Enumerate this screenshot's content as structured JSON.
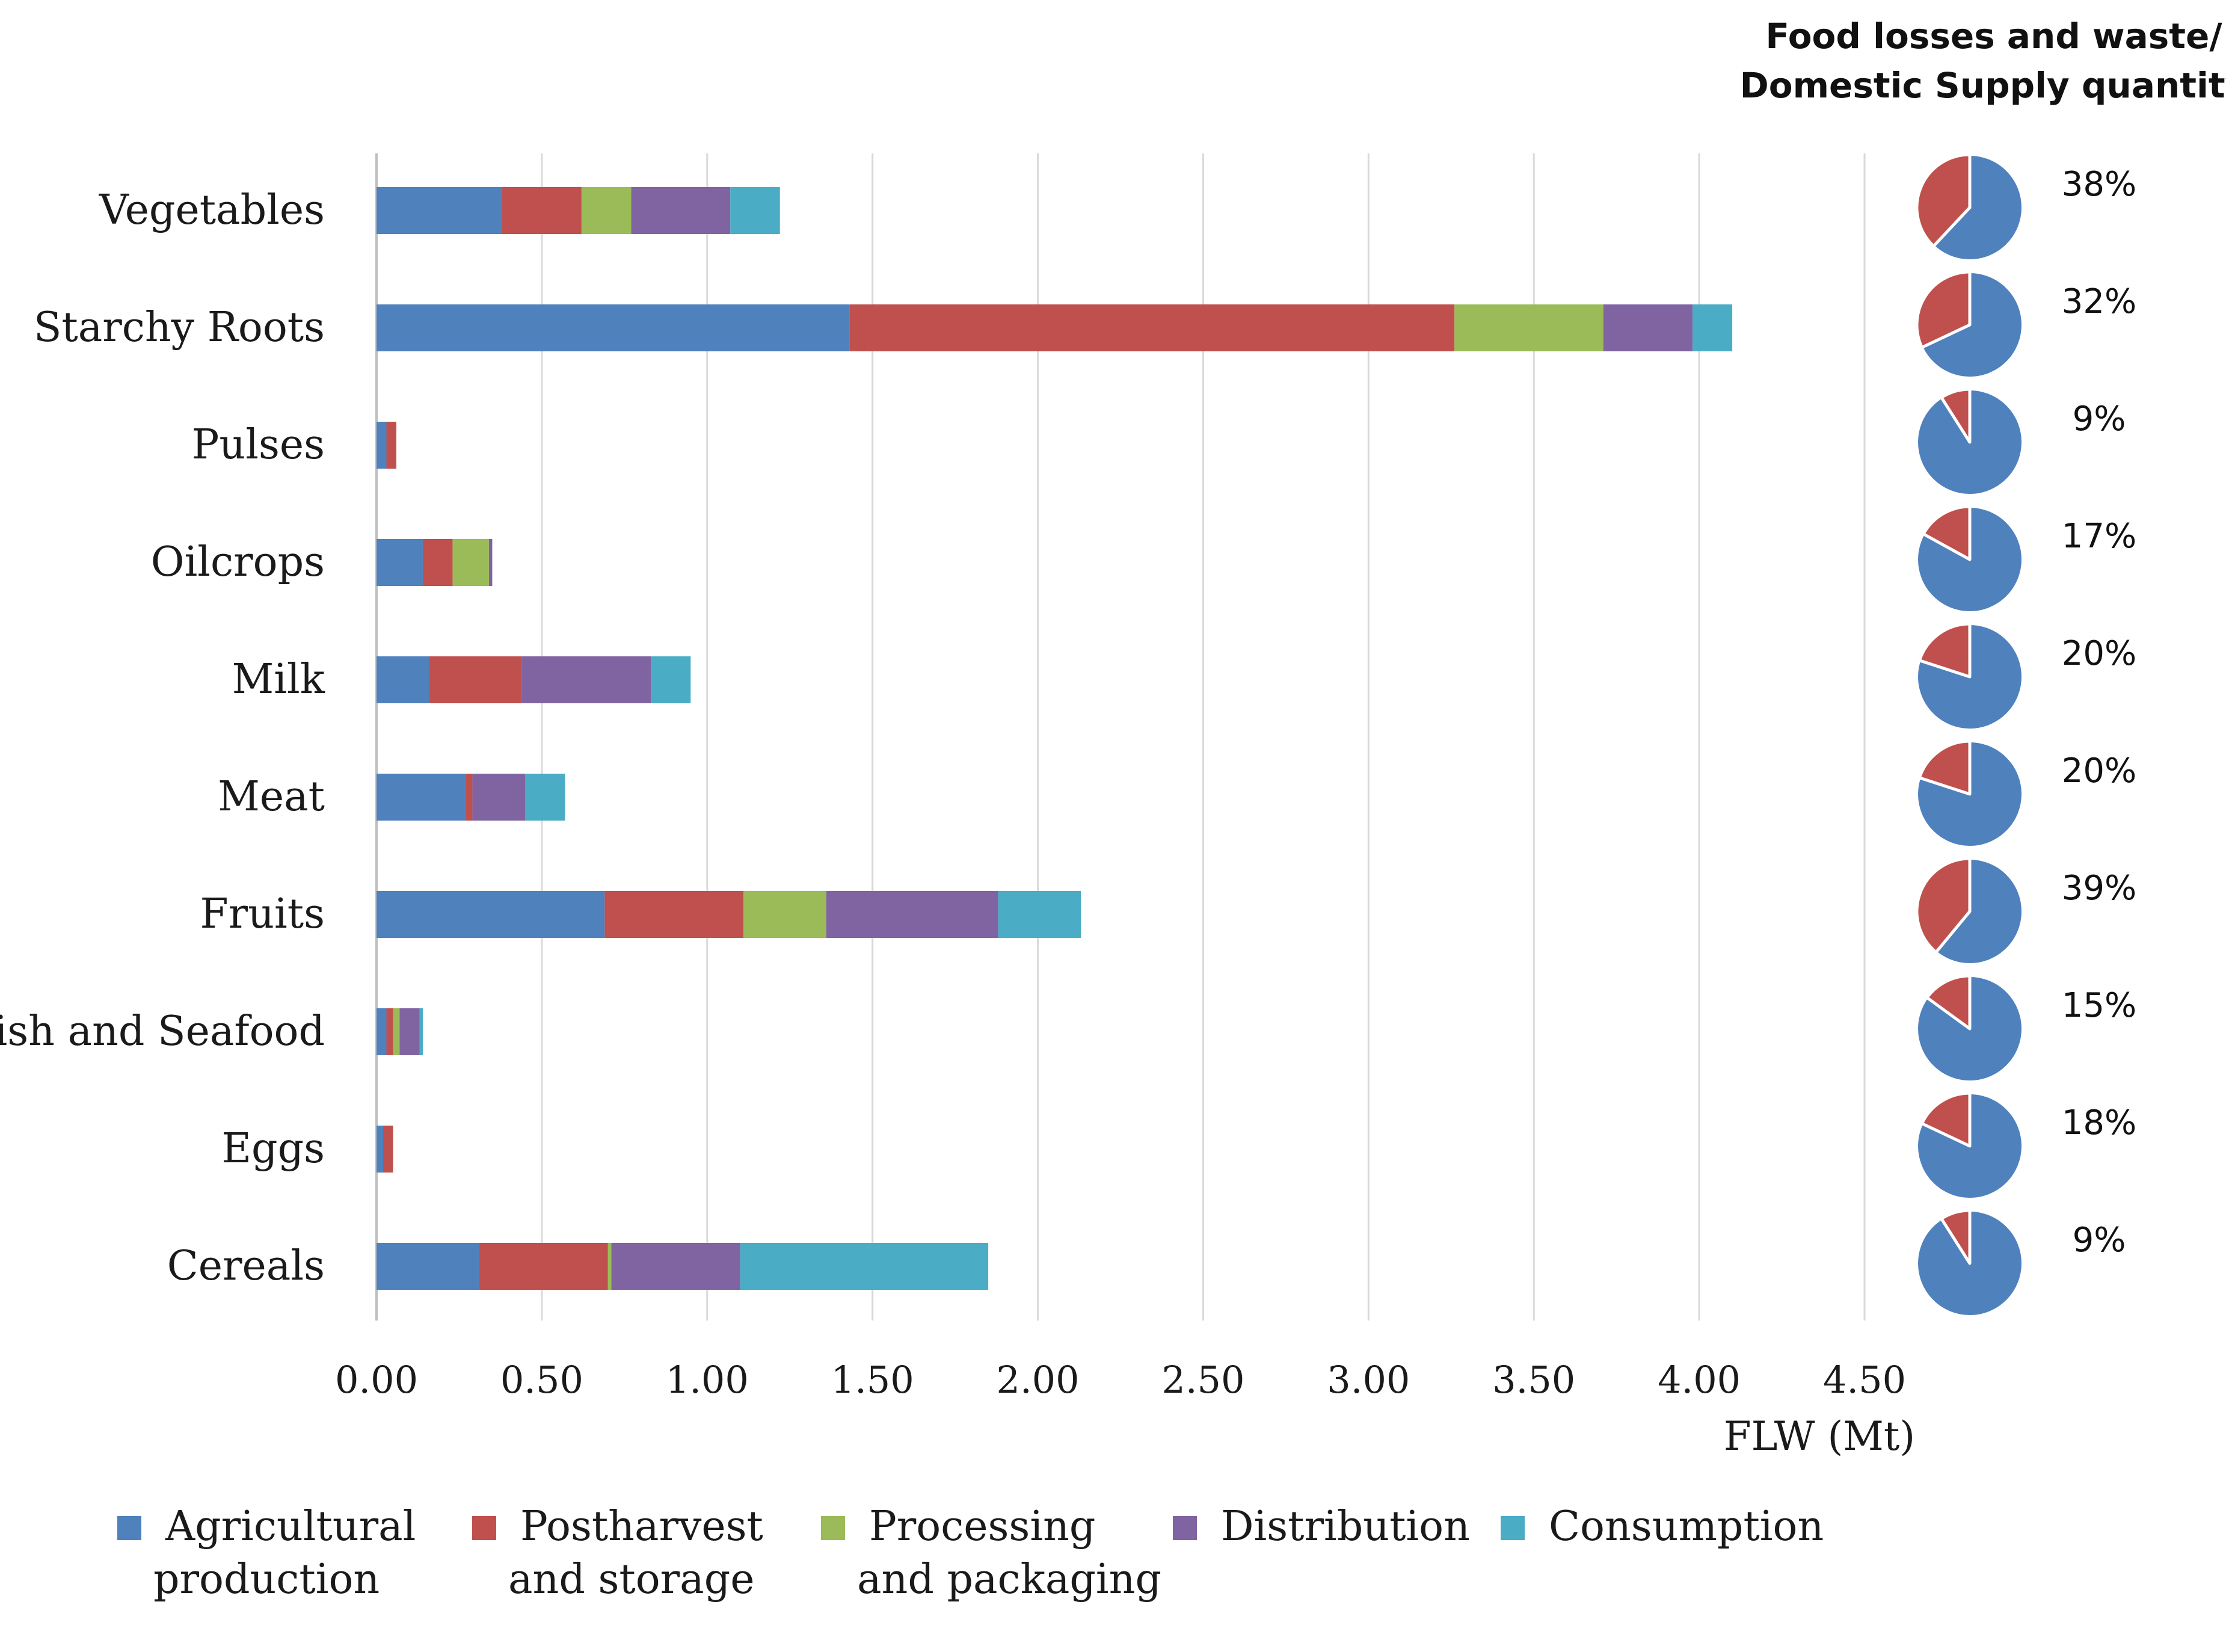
{
  "chart_data": {
    "type": "bar",
    "orientation": "horizontal",
    "stacked": true,
    "categories": [
      "Vegetables",
      "Starchy Roots",
      "Pulses",
      "Oilcrops",
      "Milk",
      "Meat",
      "Fruits",
      "Fish and Seafood",
      "Eggs",
      "Cereals"
    ],
    "series": [
      {
        "name": "Agricultural production",
        "label_lines": [
          "Agricultural",
          "production"
        ],
        "color": "#4F81BD",
        "values": [
          0.38,
          1.43,
          0.03,
          0.14,
          0.16,
          0.27,
          0.69,
          0.03,
          0.02,
          0.31
        ]
      },
      {
        "name": "Postharvest and storage",
        "label_lines": [
          "Postharvest",
          "and storage"
        ],
        "color": "#C0504D",
        "values": [
          0.24,
          1.83,
          0.03,
          0.09,
          0.28,
          0.02,
          0.42,
          0.02,
          0.03,
          0.39
        ]
      },
      {
        "name": "Processing and packaging",
        "label_lines": [
          "Processing",
          "and packaging"
        ],
        "color": "#9BBB59",
        "values": [
          0.15,
          0.45,
          0.0,
          0.11,
          0.0,
          0.0,
          0.25,
          0.02,
          0.0,
          0.01
        ]
      },
      {
        "name": "Distribution",
        "label_lines": [
          "Distribution"
        ],
        "color": "#8064A2",
        "values": [
          0.3,
          0.27,
          0.0,
          0.01,
          0.39,
          0.16,
          0.52,
          0.06,
          0.0,
          0.39
        ]
      },
      {
        "name": "Consumption",
        "label_lines": [
          "Consumption"
        ],
        "color": "#4BACC6",
        "values": [
          0.15,
          0.12,
          0.0,
          0.0,
          0.12,
          0.12,
          0.25,
          0.01,
          0.0,
          0.75
        ]
      }
    ],
    "xlabel": "FLW (Mt)",
    "ylabel": "",
    "xlim": [
      0,
      4.5
    ],
    "x_ticks": [
      "0.00",
      "0.50",
      "1.00",
      "1.50",
      "2.00",
      "2.50",
      "3.00",
      "3.50",
      "4.00",
      "4.50"
    ],
    "x_tick_values": [
      0,
      0.5,
      1.0,
      1.5,
      2.0,
      2.5,
      3.0,
      3.5,
      4.0,
      4.5
    ],
    "grid": true,
    "legend_position": "bottom",
    "ratio_title_lines": [
      "Food losses and waste/",
      "Domestic Supply quantity"
    ],
    "ratio_values": [
      38,
      32,
      9,
      17,
      20,
      20,
      39,
      15,
      18,
      9
    ],
    "ratio_labels": [
      "38%",
      "32%",
      "9%",
      "17%",
      "20%",
      "20%",
      "39%",
      "15%",
      "18%",
      "9%"
    ],
    "ratio_colors": {
      "share": "#C0504D",
      "rest": "#4F81BD"
    }
  }
}
